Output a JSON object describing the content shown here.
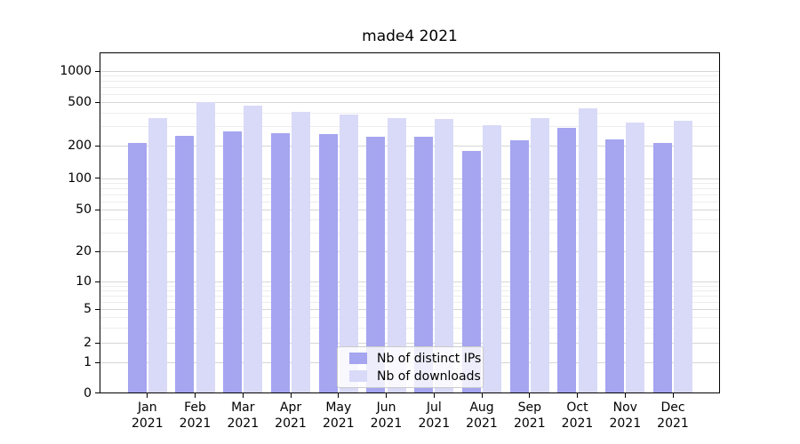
{
  "chart_data": {
    "type": "bar",
    "title": "made4 2021",
    "year_label": "2021",
    "categories": [
      "Jan",
      "Feb",
      "Mar",
      "Apr",
      "May",
      "Jun",
      "Jul",
      "Aug",
      "Sep",
      "Oct",
      "Nov",
      "Dec"
    ],
    "series": [
      {
        "name": "Nb of distinct IPs",
        "color": "#a5a5f0",
        "values": [
          210,
          245,
          270,
          262,
          255,
          240,
          240,
          180,
          225,
          290,
          230,
          210
        ]
      },
      {
        "name": "Nb of downloads",
        "color": "#d9d9f8",
        "values": [
          355,
          500,
          465,
          405,
          385,
          355,
          350,
          310,
          360,
          440,
          325,
          335
        ]
      }
    ],
    "xlabel": "",
    "ylabel": "",
    "yscale": "symlog",
    "yticks": [
      0,
      1,
      2,
      5,
      10,
      20,
      50,
      100,
      200,
      500,
      1000
    ],
    "ylim": [
      0,
      1300
    ],
    "grid": true,
    "legend_position": "lower center"
  }
}
